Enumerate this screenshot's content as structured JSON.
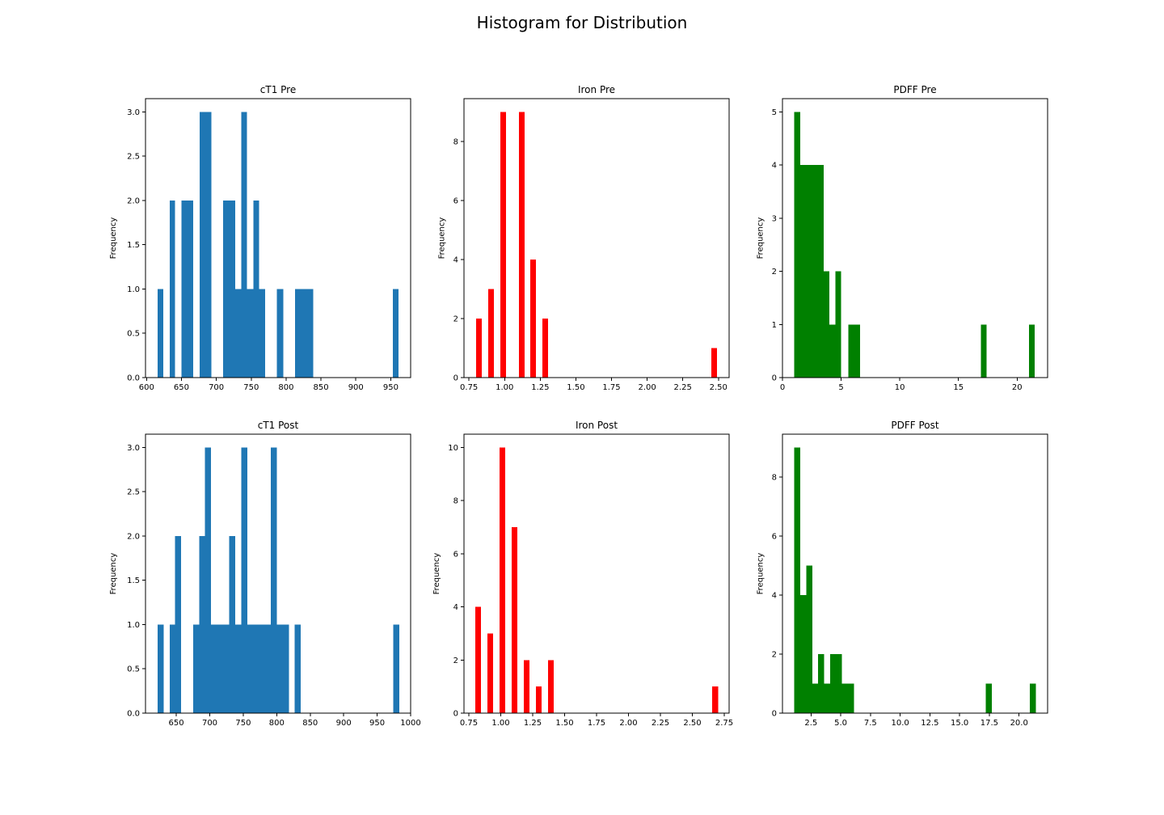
{
  "figure": {
    "title": "Histogram for Distribution"
  },
  "chart_data": [
    {
      "type": "bar",
      "title": "cT1 Pre",
      "ylabel": "Frequency",
      "color": "#1f77b4",
      "xlim": [
        598.5,
        978.5
      ],
      "ylim": [
        0,
        3.15
      ],
      "xticks": [
        600,
        650,
        700,
        750,
        800,
        850,
        900,
        950
      ],
      "xtick_labels": [
        "600",
        "650",
        "700",
        "750",
        "800",
        "850",
        "900",
        "950"
      ],
      "yticks": [
        0,
        0.5,
        1,
        1.5,
        2,
        2.5,
        3
      ],
      "ytick_labels": [
        "0.0",
        "0.5",
        "1.0",
        "1.5",
        "2.0",
        "2.5",
        "3.0"
      ],
      "bins": [
        {
          "x0": 616,
          "x1": 624,
          "count": 1
        },
        {
          "x0": 633,
          "x1": 641,
          "count": 2
        },
        {
          "x0": 650,
          "x1": 667,
          "count": 2
        },
        {
          "x0": 676,
          "x1": 693,
          "count": 3
        },
        {
          "x0": 710,
          "x1": 727,
          "count": 2
        },
        {
          "x0": 727,
          "x1": 736,
          "count": 1
        },
        {
          "x0": 736,
          "x1": 744,
          "count": 3
        },
        {
          "x0": 744,
          "x1": 753,
          "count": 1
        },
        {
          "x0": 753,
          "x1": 761,
          "count": 2
        },
        {
          "x0": 761,
          "x1": 770,
          "count": 1
        },
        {
          "x0": 787,
          "x1": 796,
          "count": 1
        },
        {
          "x0": 813,
          "x1": 839,
          "count": 1
        },
        {
          "x0": 953,
          "x1": 961,
          "count": 1
        }
      ]
    },
    {
      "type": "bar",
      "title": "Iron Pre",
      "ylabel": "Frequency",
      "color": "#ff0000",
      "xlim": [
        0.715,
        2.575
      ],
      "ylim": [
        0,
        9.45
      ],
      "xticks": [
        0.75,
        1.0,
        1.25,
        1.5,
        1.75,
        2.0,
        2.25,
        2.5
      ],
      "xtick_labels": [
        "0.75",
        "1.00",
        "1.25",
        "1.50",
        "1.75",
        "2.00",
        "2.25",
        "2.50"
      ],
      "yticks": [
        0,
        2,
        4,
        6,
        8
      ],
      "ytick_labels": [
        "0",
        "2",
        "4",
        "6",
        "8"
      ],
      "bins": [
        {
          "x0": 0.8,
          "x1": 0.84,
          "count": 2
        },
        {
          "x0": 0.885,
          "x1": 0.925,
          "count": 3
        },
        {
          "x0": 0.97,
          "x1": 1.01,
          "count": 9
        },
        {
          "x0": 1.1,
          "x1": 1.14,
          "count": 9
        },
        {
          "x0": 1.18,
          "x1": 1.22,
          "count": 4
        },
        {
          "x0": 1.265,
          "x1": 1.305,
          "count": 2
        },
        {
          "x0": 2.45,
          "x1": 2.49,
          "count": 1
        }
      ]
    },
    {
      "type": "bar",
      "title": "PDFF Pre",
      "ylabel": "Frequency",
      "color": "#008000",
      "xlim": [
        0,
        22.6
      ],
      "ylim": [
        0,
        5.25
      ],
      "xticks": [
        0,
        5,
        10,
        15,
        20
      ],
      "xtick_labels": [
        "0",
        "5",
        "10",
        "15",
        "20"
      ],
      "yticks": [
        0,
        1,
        2,
        3,
        4,
        5
      ],
      "ytick_labels": [
        "0",
        "1",
        "2",
        "3",
        "4",
        "5"
      ],
      "bins": [
        {
          "x0": 1.0,
          "x1": 1.5,
          "count": 5
        },
        {
          "x0": 1.5,
          "x1": 3.5,
          "count": 4
        },
        {
          "x0": 3.5,
          "x1": 4.0,
          "count": 2
        },
        {
          "x0": 4.0,
          "x1": 4.5,
          "count": 1
        },
        {
          "x0": 4.5,
          "x1": 5.0,
          "count": 2
        },
        {
          "x0": 5.6,
          "x1": 6.6,
          "count": 1
        },
        {
          "x0": 16.9,
          "x1": 17.4,
          "count": 1
        },
        {
          "x0": 21.0,
          "x1": 21.5,
          "count": 1
        }
      ]
    },
    {
      "type": "bar",
      "title": "cT1 Post",
      "ylabel": "Frequency",
      "color": "#1f77b4",
      "xlim": [
        604,
        1000
      ],
      "ylim": [
        0,
        3.15
      ],
      "xticks": [
        650,
        700,
        750,
        800,
        850,
        900,
        950,
        1000
      ],
      "xtick_labels": [
        "650",
        "700",
        "750",
        "800",
        "850",
        "900",
        "950",
        "1000"
      ],
      "yticks": [
        0,
        0.5,
        1,
        1.5,
        2,
        2.5,
        3
      ],
      "ytick_labels": [
        "0.0",
        "0.5",
        "1.0",
        "1.5",
        "2.0",
        "2.5",
        "3.0"
      ],
      "bins": [
        {
          "x0": 622,
          "x1": 631,
          "count": 1
        },
        {
          "x0": 640,
          "x1": 648,
          "count": 1
        },
        {
          "x0": 648,
          "x1": 657,
          "count": 2
        },
        {
          "x0": 675,
          "x1": 684,
          "count": 1
        },
        {
          "x0": 684,
          "x1": 693,
          "count": 2
        },
        {
          "x0": 693,
          "x1": 702,
          "count": 3
        },
        {
          "x0": 702,
          "x1": 729,
          "count": 1
        },
        {
          "x0": 729,
          "x1": 738,
          "count": 2
        },
        {
          "x0": 738,
          "x1": 747,
          "count": 1
        },
        {
          "x0": 747,
          "x1": 756,
          "count": 3
        },
        {
          "x0": 756,
          "x1": 791,
          "count": 1
        },
        {
          "x0": 791,
          "x1": 800,
          "count": 3
        },
        {
          "x0": 800,
          "x1": 818,
          "count": 1
        },
        {
          "x0": 827,
          "x1": 836,
          "count": 1
        },
        {
          "x0": 974,
          "x1": 983,
          "count": 1
        }
      ]
    },
    {
      "type": "bar",
      "title": "Iron Post",
      "ylabel": "Frequency",
      "color": "#ff0000",
      "xlim": [
        0.712,
        2.788
      ],
      "ylim": [
        0,
        10.5
      ],
      "xticks": [
        0.75,
        1.0,
        1.25,
        1.5,
        1.75,
        2.0,
        2.25,
        2.5,
        2.75
      ],
      "xtick_labels": [
        "0.75",
        "1.00",
        "1.25",
        "1.50",
        "1.75",
        "2.00",
        "2.25",
        "2.50",
        "2.75"
      ],
      "yticks": [
        0,
        2,
        4,
        6,
        8,
        10
      ],
      "ytick_labels": [
        "0",
        "2",
        "4",
        "6",
        "8",
        "10"
      ],
      "bins": [
        {
          "x0": 0.8,
          "x1": 0.846,
          "count": 4
        },
        {
          "x0": 0.895,
          "x1": 0.941,
          "count": 3
        },
        {
          "x0": 0.99,
          "x1": 1.036,
          "count": 10
        },
        {
          "x0": 1.085,
          "x1": 1.131,
          "count": 7
        },
        {
          "x0": 1.18,
          "x1": 1.226,
          "count": 2
        },
        {
          "x0": 1.275,
          "x1": 1.321,
          "count": 1
        },
        {
          "x0": 1.37,
          "x1": 1.416,
          "count": 2
        },
        {
          "x0": 2.655,
          "x1": 2.701,
          "count": 1
        }
      ]
    },
    {
      "type": "bar",
      "title": "PDFF Post",
      "ylabel": "Frequency",
      "color": "#008000",
      "xlim": [
        0.1,
        22.4
      ],
      "ylim": [
        0,
        9.45
      ],
      "xticks": [
        2.5,
        5,
        7.5,
        10,
        12.5,
        15,
        17.5,
        20
      ],
      "xtick_labels": [
        "2.5",
        "5.0",
        "7.5",
        "10.0",
        "12.5",
        "15.0",
        "17.5",
        "20.0"
      ],
      "yticks": [
        0,
        2,
        4,
        6,
        8
      ],
      "ytick_labels": [
        "0",
        "2",
        "4",
        "6",
        "8"
      ],
      "bins": [
        {
          "x0": 1.1,
          "x1": 1.6,
          "count": 9
        },
        {
          "x0": 1.6,
          "x1": 2.1,
          "count": 4
        },
        {
          "x0": 2.1,
          "x1": 2.6,
          "count": 5
        },
        {
          "x0": 2.6,
          "x1": 3.1,
          "count": 1
        },
        {
          "x0": 3.1,
          "x1": 3.6,
          "count": 2
        },
        {
          "x0": 3.6,
          "x1": 4.1,
          "count": 1
        },
        {
          "x0": 4.1,
          "x1": 5.1,
          "count": 2
        },
        {
          "x0": 5.1,
          "x1": 6.1,
          "count": 1
        },
        {
          "x0": 17.2,
          "x1": 17.7,
          "count": 1
        },
        {
          "x0": 20.9,
          "x1": 21.4,
          "count": 1
        }
      ]
    }
  ]
}
